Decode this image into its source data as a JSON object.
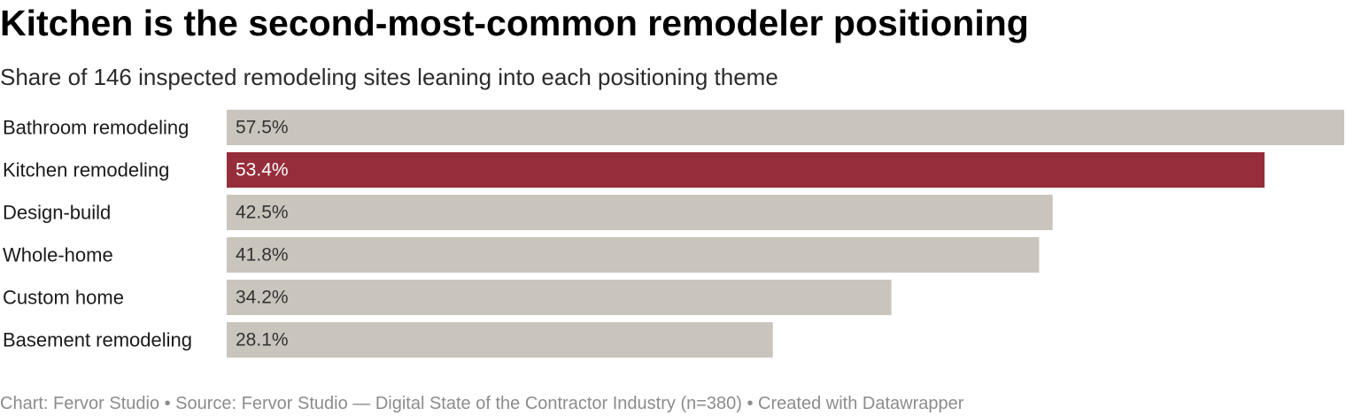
{
  "header": {
    "title": "Kitchen is the second-most-common remodeler positioning",
    "subtitle": "Share of 146 inspected remodeling sites leaning into each positioning theme"
  },
  "footer": {
    "text": "Chart: Fervor Studio • Source: Fervor Studio — Digital State of the Contractor Industry (n=380) • Created with Datawrapper"
  },
  "chart_data": {
    "type": "bar",
    "orientation": "horizontal",
    "categories": [
      "Bathroom remodeling",
      "Kitchen remodeling",
      "Design-build",
      "Whole-home",
      "Custom home",
      "Basement remodeling"
    ],
    "values": [
      57.5,
      53.4,
      42.5,
      41.8,
      34.2,
      28.1
    ],
    "value_labels": [
      "57.5%",
      "53.4%",
      "42.5%",
      "41.8%",
      "34.2%",
      "28.1%"
    ],
    "unit": "%",
    "xlim": [
      0,
      57.5
    ],
    "grid": false,
    "highlight_index": 1,
    "colors": {
      "default_bar": "#c9c5bd",
      "highlight_bar": "#962d3a",
      "default_label": "#333333",
      "highlight_label": "#ffffff",
      "category_label": "#1a1a1a"
    }
  }
}
